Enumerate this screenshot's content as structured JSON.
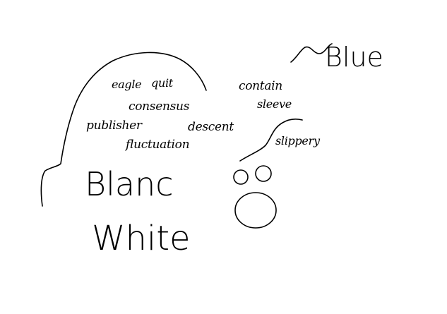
{
  "words": {
    "eagle": "eagle",
    "quit": "quit",
    "consensus": "consensus",
    "publisher": "publisher",
    "fluctuation": "fluctuation",
    "descent": "descent",
    "contain": "contain",
    "sleeve": "sleeve",
    "slippery": "slippery",
    "blue": "Blue",
    "blanc": "Blanc",
    "white": "White"
  },
  "colors": {
    "background": "#ffffff",
    "ink": "#000000"
  }
}
